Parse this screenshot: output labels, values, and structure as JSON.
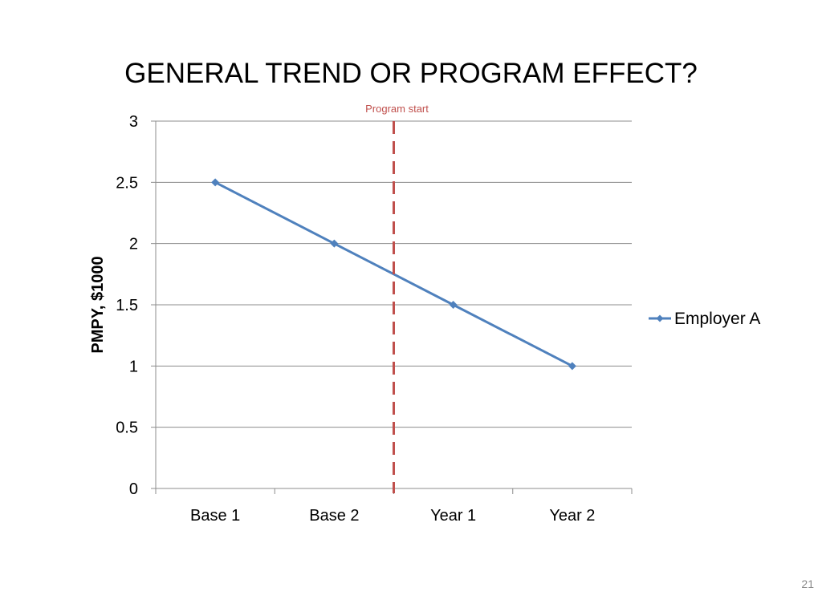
{
  "slide": {
    "title": "GENERAL TREND OR PROGRAM EFFECT?",
    "page_number": "21"
  },
  "chart_data": {
    "type": "line",
    "categories": [
      "Base 1",
      "Base 2",
      "Year 1",
      "Year 2"
    ],
    "series": [
      {
        "name": "Employer A",
        "values": [
          2.5,
          2.0,
          1.5,
          1.0
        ],
        "color": "#4f81bd"
      }
    ],
    "ylabel": "PMPY, $1000",
    "xlabel": "",
    "ylim": [
      0,
      3
    ],
    "yticks": [
      "0",
      "0.5",
      "1",
      "1.5",
      "2",
      "2.5",
      "3"
    ],
    "grid": true,
    "legend": "right",
    "annotation": {
      "text": "Program start",
      "position_between": [
        "Base 2",
        "Year 1"
      ],
      "style": "dashed",
      "color": "#c0504d"
    }
  }
}
